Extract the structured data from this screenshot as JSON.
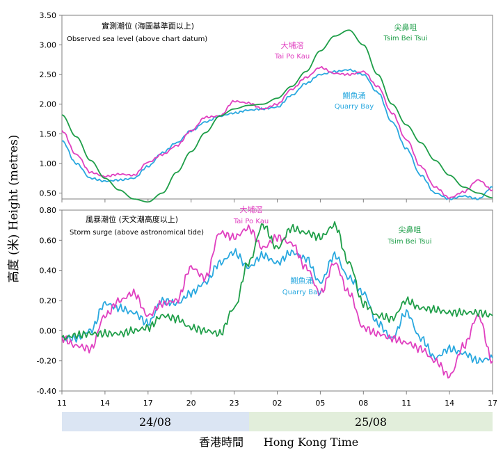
{
  "shared": {
    "ylabel": "高度 (米)   Height (metres)",
    "x_tick_labels": [
      "11",
      "14",
      "17",
      "20",
      "23",
      "02",
      "05",
      "08",
      "11",
      "14",
      "17"
    ],
    "date_bands": [
      {
        "label": "24/08",
        "color": "#dbe5f3"
      },
      {
        "label": "25/08",
        "color": "#e2eedb"
      }
    ],
    "xlabel_zh": "香港時間",
    "xlabel_en": "Hong Kong Time"
  },
  "colors": {
    "quarry_bay": "#29a8df",
    "tai_po_kau": "#e040c0",
    "tsim_bei_tsui": "#1e9e48",
    "axis": "#7f7f7f",
    "grid": "#e6e6e6"
  },
  "chart_data": [
    {
      "type": "line",
      "title": "實測潮位 (海圖基準面以上)",
      "subtitle": "Observed sea level (above chart datum)",
      "xlabel": "Hong Kong Time",
      "ylabel": "Height (metres)",
      "y_ticks": [
        "3.50",
        "3.00",
        "2.50",
        "2.00",
        "1.50",
        "1.00",
        "0.50"
      ],
      "ylim": [
        0.4,
        3.5
      ],
      "x_hours": [
        0,
        30
      ],
      "grid": false,
      "series": [
        {
          "key": "quarry_bay",
          "name_zh": "鰂魚涌",
          "name_en": "Quarry Bay",
          "x": [
            0,
            1,
            2,
            3,
            4,
            5,
            6,
            7,
            8,
            9,
            10,
            11,
            12,
            13,
            14,
            15,
            16,
            17,
            18,
            19,
            20,
            21,
            22,
            23,
            24,
            25,
            26,
            27,
            28,
            29,
            30
          ],
          "values": [
            1.38,
            1.0,
            0.75,
            0.7,
            0.72,
            0.75,
            0.95,
            1.18,
            1.35,
            1.55,
            1.7,
            1.8,
            1.85,
            1.9,
            1.92,
            1.95,
            2.15,
            2.35,
            2.5,
            2.55,
            2.58,
            2.5,
            2.2,
            1.7,
            1.25,
            0.8,
            0.5,
            0.4,
            0.45,
            0.4,
            0.6
          ]
        },
        {
          "key": "tai_po_kau",
          "name_zh": "大埔滘",
          "name_en": "Tai Po Kau",
          "x": [
            0,
            1,
            2,
            3,
            4,
            5,
            6,
            7,
            8,
            9,
            10,
            11,
            12,
            13,
            14,
            15,
            16,
            17,
            18,
            19,
            20,
            21,
            22,
            23,
            24,
            25,
            26,
            27,
            28,
            29,
            30
          ],
          "values": [
            1.55,
            1.15,
            0.85,
            0.78,
            0.82,
            0.8,
            1.02,
            1.15,
            1.3,
            1.55,
            1.78,
            1.8,
            2.05,
            2.02,
            1.92,
            2.0,
            2.25,
            2.45,
            2.62,
            2.52,
            2.5,
            2.55,
            2.3,
            1.85,
            1.4,
            0.95,
            0.6,
            0.42,
            0.52,
            0.72,
            0.55
          ]
        },
        {
          "key": "tsim_bei_tsui",
          "name_zh": "尖鼻咀",
          "name_en": "Tsim Bei Tsui",
          "x": [
            0,
            1,
            2,
            3,
            4,
            5,
            6,
            7,
            8,
            9,
            10,
            11,
            12,
            13,
            14,
            15,
            16,
            17,
            18,
            19,
            20,
            21,
            22,
            23,
            24,
            25,
            26,
            27,
            28,
            29,
            30
          ],
          "values": [
            1.82,
            1.45,
            1.05,
            0.75,
            0.55,
            0.4,
            0.35,
            0.5,
            0.85,
            1.2,
            1.52,
            1.8,
            1.92,
            1.98,
            2.0,
            2.1,
            2.3,
            2.55,
            2.9,
            3.15,
            3.25,
            3.0,
            2.5,
            2.0,
            1.65,
            1.35,
            1.05,
            0.8,
            0.6,
            0.5,
            0.42
          ]
        }
      ]
    },
    {
      "type": "line",
      "title": "風暴潮位 (天文潮高度以上)",
      "subtitle": "Storm surge (above astronomical tide)",
      "xlabel": "Hong Kong Time",
      "ylabel": "Height (metres)",
      "y_ticks": [
        "0.80",
        "0.60",
        "0.40",
        "0.20",
        "0.00",
        "-0.20",
        "-0.40"
      ],
      "ylim": [
        -0.4,
        0.8
      ],
      "x_hours": [
        0,
        30
      ],
      "grid": false,
      "series": [
        {
          "key": "quarry_bay",
          "name_zh": "鰂魚涌",
          "name_en": "Quarry Bay",
          "x": [
            0,
            1,
            2,
            3,
            4,
            5,
            6,
            7,
            8,
            9,
            10,
            11,
            12,
            13,
            14,
            15,
            16,
            17,
            18,
            19,
            20,
            21,
            22,
            23,
            24,
            25,
            26,
            27,
            28,
            29,
            30
          ],
          "values": [
            -0.05,
            -0.05,
            0.0,
            0.18,
            0.15,
            0.12,
            0.05,
            0.2,
            0.18,
            0.25,
            0.32,
            0.45,
            0.52,
            0.42,
            0.5,
            0.45,
            0.52,
            0.48,
            0.32,
            0.5,
            0.35,
            0.25,
            0.05,
            -0.05,
            0.12,
            -0.05,
            -0.18,
            -0.12,
            -0.15,
            -0.2,
            -0.18
          ]
        },
        {
          "key": "tai_po_kau",
          "name_zh": "大埔滘",
          "name_en": "Tai Po Kau",
          "x": [
            0,
            1,
            2,
            3,
            4,
            5,
            6,
            7,
            8,
            9,
            10,
            11,
            12,
            13,
            14,
            15,
            16,
            17,
            18,
            19,
            20,
            21,
            22,
            23,
            24,
            25,
            26,
            27,
            28,
            29,
            30
          ],
          "values": [
            -0.05,
            -0.1,
            -0.12,
            0.1,
            0.2,
            0.25,
            0.1,
            0.18,
            0.2,
            0.42,
            0.35,
            0.65,
            0.62,
            0.68,
            0.55,
            0.62,
            0.58,
            0.42,
            0.25,
            0.45,
            0.25,
            0.02,
            -0.02,
            -0.05,
            -0.08,
            -0.12,
            -0.2,
            -0.3,
            -0.1,
            0.1,
            -0.2
          ]
        },
        {
          "key": "tsim_bei_tsui",
          "name_zh": "尖鼻咀",
          "name_en": "Tsim Bei Tsui",
          "x": [
            0,
            1,
            2,
            3,
            4,
            5,
            6,
            7,
            8,
            9,
            10,
            11,
            12,
            13,
            14,
            15,
            16,
            17,
            18,
            19,
            20,
            21,
            22,
            23,
            24,
            25,
            26,
            27,
            28,
            29,
            30
          ],
          "values": [
            -0.05,
            -0.03,
            -0.02,
            -0.02,
            -0.02,
            0.0,
            0.02,
            0.1,
            0.08,
            0.02,
            0.0,
            -0.02,
            0.15,
            0.45,
            0.7,
            0.55,
            0.68,
            0.65,
            0.62,
            0.7,
            0.45,
            0.18,
            0.1,
            0.08,
            0.2,
            0.15,
            0.14,
            0.12,
            0.12,
            0.12,
            0.1
          ]
        }
      ]
    }
  ]
}
